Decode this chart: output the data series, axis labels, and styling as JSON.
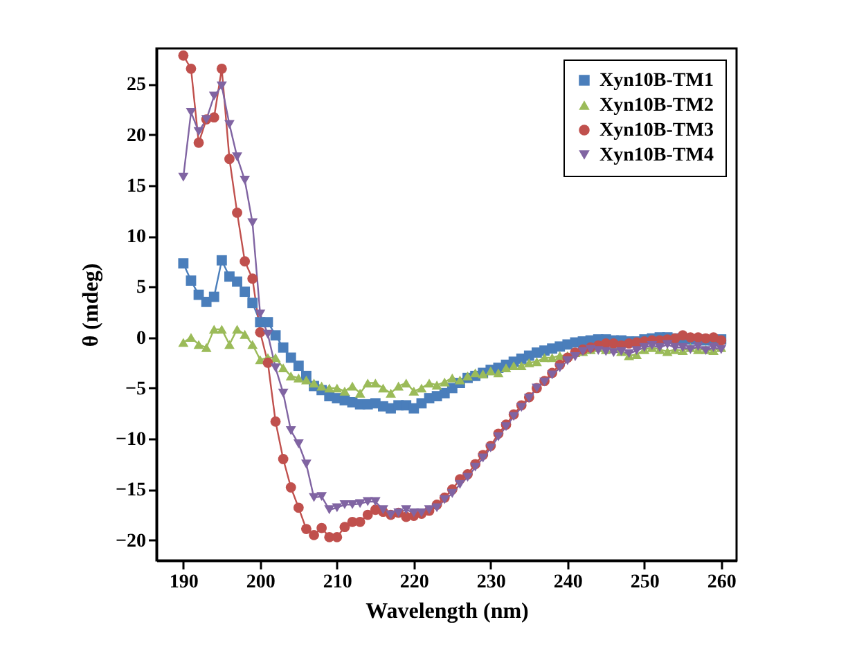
{
  "chart_data": {
    "type": "line",
    "xlabel": "Wavelength (nm)",
    "ylabel": "θ (mdeg)",
    "x": [
      190,
      191,
      192,
      193,
      194,
      195,
      196,
      197,
      198,
      199,
      200,
      201,
      202,
      203,
      204,
      205,
      206,
      207,
      208,
      209,
      210,
      211,
      212,
      213,
      214,
      215,
      216,
      217,
      218,
      219,
      220,
      221,
      222,
      223,
      224,
      225,
      226,
      227,
      228,
      229,
      230,
      231,
      232,
      233,
      234,
      235,
      236,
      237,
      238,
      239,
      240,
      241,
      242,
      243,
      244,
      245,
      246,
      247,
      248,
      249,
      250,
      251,
      252,
      253,
      254,
      255,
      256,
      257,
      258,
      259,
      260
    ],
    "xlim": [
      186.5,
      262
    ],
    "xticks": [
      190,
      200,
      210,
      220,
      230,
      240,
      250,
      260
    ],
    "ylim": [
      -22,
      28.5
    ],
    "yticks": [
      -20,
      -15,
      -10,
      -5,
      0,
      5,
      10,
      15,
      20,
      25
    ],
    "grid": false,
    "legend": "top right",
    "line_style": "solid",
    "series": [
      {
        "name": "Xyn10B-TM1",
        "color": "#4a7ebb",
        "marker": "square",
        "values": [
          7.3,
          5.6,
          4.2,
          3.5,
          4.0,
          7.6,
          6.0,
          5.5,
          4.5,
          3.4,
          1.5,
          1.5,
          0.2,
          -1.0,
          -2.0,
          -2.8,
          -3.8,
          -4.8,
          -5.2,
          -5.8,
          -6.0,
          -6.2,
          -6.4,
          -6.6,
          -6.6,
          -6.5,
          -6.8,
          -7.0,
          -6.7,
          -6.7,
          -7.0,
          -6.5,
          -6.0,
          -5.8,
          -5.5,
          -5.0,
          -4.5,
          -4.0,
          -3.8,
          -3.5,
          -3.2,
          -3.0,
          -2.7,
          -2.4,
          -2.1,
          -1.8,
          -1.5,
          -1.3,
          -1.1,
          -0.9,
          -0.7,
          -0.5,
          -0.4,
          -0.3,
          -0.2,
          -0.2,
          -0.3,
          -0.3,
          -0.4,
          -0.4,
          -0.2,
          -0.1,
          0,
          0,
          -0.1,
          -0.1,
          -0.2,
          -0.2,
          -0.3,
          -0.3,
          -0.2
        ]
      },
      {
        "name": "Xyn10B-TM2",
        "color": "#9bbb59",
        "marker": "triangle",
        "values": [
          -0.5,
          0,
          -0.7,
          -1.0,
          0.8,
          0.8,
          -0.7,
          0.8,
          0.3,
          -0.7,
          -2.2,
          -2.0,
          -2.0,
          -3.0,
          -3.8,
          -4.0,
          -4.2,
          -4.5,
          -4.8,
          -5.0,
          -5.0,
          -5.3,
          -4.8,
          -5.5,
          -4.5,
          -4.5,
          -5.0,
          -5.5,
          -4.8,
          -4.5,
          -5.3,
          -5.0,
          -4.5,
          -4.7,
          -4.4,
          -4.0,
          -4.2,
          -3.8,
          -3.5,
          -3.6,
          -3.3,
          -3.5,
          -3.0,
          -2.8,
          -2.8,
          -2.5,
          -2.4,
          -2.0,
          -2.0,
          -1.8,
          -1.8,
          -1.5,
          -1.4,
          -1.2,
          -1.0,
          -1.2,
          -1.0,
          -1.4,
          -1.8,
          -1.7,
          -1.2,
          -1.0,
          -1.2,
          -1.4,
          -1.2,
          -1.3,
          -1.0,
          -1.2,
          -1.2,
          -1.3,
          -1.0
        ]
      },
      {
        "name": "Xyn10B-TM3",
        "color": "#c0504d",
        "marker": "circle",
        "values": [
          27.8,
          26.5,
          19.2,
          21.5,
          21.7,
          26.5,
          17.6,
          12.3,
          7.5,
          5.8,
          0.5,
          -2.5,
          -8.3,
          -12.0,
          -14.8,
          -16.8,
          -18.9,
          -19.5,
          -18.8,
          -19.7,
          -19.7,
          -18.7,
          -18.2,
          -18.2,
          -17.5,
          -17.0,
          -17.2,
          -17.5,
          -17.3,
          -17.7,
          -17.6,
          -17.4,
          -17.1,
          -16.5,
          -15.8,
          -15.0,
          -14.0,
          -13.5,
          -12.5,
          -11.6,
          -10.7,
          -9.5,
          -8.6,
          -7.6,
          -6.7,
          -5.9,
          -5.0,
          -4.3,
          -3.5,
          -2.7,
          -2.0,
          -1.5,
          -1.2,
          -1.0,
          -0.8,
          -0.6,
          -0.6,
          -0.8,
          -0.6,
          -0.5,
          -0.4,
          -0.3,
          -0.3,
          -0.2,
          -0.1,
          0.2,
          0,
          0,
          -0.1,
          0,
          -0.3
        ]
      },
      {
        "name": "Xyn10B-TM4",
        "color": "#8064a2",
        "marker": "triangle-down",
        "values": [
          15.8,
          22.2,
          20.3,
          21.5,
          23.8,
          24.8,
          21.0,
          17.8,
          15.5,
          11.3,
          2.3,
          0.3,
          -3.0,
          -5.5,
          -9.2,
          -10.5,
          -12.5,
          -15.8,
          -15.7,
          -17.0,
          -16.8,
          -16.5,
          -16.5,
          -16.4,
          -16.2,
          -16.2,
          -17.0,
          -17.5,
          -17.3,
          -17.0,
          -17.3,
          -17.3,
          -17.0,
          -16.8,
          -16.0,
          -15.4,
          -14.5,
          -13.8,
          -12.8,
          -11.9,
          -10.9,
          -9.8,
          -8.8,
          -7.8,
          -6.9,
          -6.0,
          -5.0,
          -4.4,
          -3.7,
          -3.0,
          -2.3,
          -1.9,
          -1.4,
          -1.2,
          -1.3,
          -1.4,
          -1.5,
          -1.4,
          -1.6,
          -1.3,
          -1.0,
          -0.8,
          -1.0,
          -0.7,
          -1.0,
          -1.0,
          -1.2,
          -0.9,
          -1.3,
          -1.0,
          -1.2
        ]
      }
    ]
  }
}
